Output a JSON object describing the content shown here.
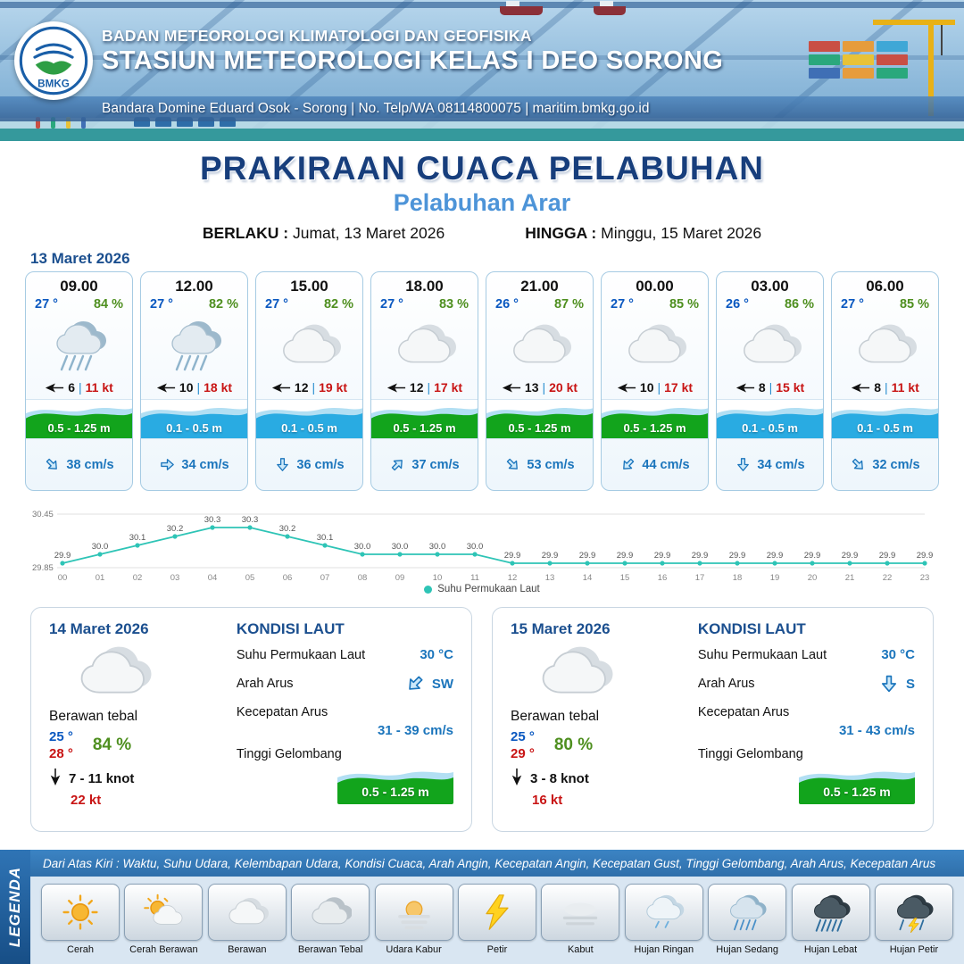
{
  "colors": {
    "title_blue": "#173e7c",
    "subtitle_blue": "#4d94d8",
    "date_blue": "#1b4f8f",
    "temp_blue": "#0a58c0",
    "humidity_green": "#4e8f1f",
    "gust_red": "#c81414",
    "wave_green": "#12a41c",
    "wave_blue": "#29abe2",
    "current_blue": "#1b75bc",
    "chart_line": "#2ec4b6"
  },
  "header": {
    "logo_text": "BMKG",
    "line1": "BADAN METEOROLOGI KLIMATOLOGI DAN GEOFISIKA",
    "line2": "STASIUN METEOROLOGI KELAS I DEO SORONG",
    "line3": "Bandara Domine Eduard Osok - Sorong | No. Telp/WA 08114800075 | maritim.bmkg.go.id"
  },
  "title": {
    "main": "PRAKIRAAN CUACA PELABUHAN",
    "subtitle": "Pelabuhan Arar",
    "berlaku_label": "BERLAKU :",
    "berlaku_value": "Jumat, 13 Maret 2026",
    "hingga_label": "HINGGA :",
    "hingga_value": "Minggu, 15 Maret 2026"
  },
  "forecast": {
    "date": "13 Maret 2026",
    "cards": [
      {
        "time": "09.00",
        "temp": "27 °",
        "humidity": "84 %",
        "icon": "rain",
        "wind": "6",
        "gust": "11 kt",
        "wave": "0.5 - 1.25 m",
        "wave_level": "green",
        "current": "38 cm/s",
        "current_dir": "SE"
      },
      {
        "time": "12.00",
        "temp": "27 °",
        "humidity": "82 %",
        "icon": "rain",
        "wind": "10",
        "gust": "18 kt",
        "wave": "0.1 - 0.5 m",
        "wave_level": "blue",
        "current": "34 cm/s",
        "current_dir": "E"
      },
      {
        "time": "15.00",
        "temp": "27 °",
        "humidity": "82 %",
        "icon": "cloud",
        "wind": "12",
        "gust": "19 kt",
        "wave": "0.1 - 0.5 m",
        "wave_level": "blue",
        "current": "36 cm/s",
        "current_dir": "S"
      },
      {
        "time": "18.00",
        "temp": "27 °",
        "humidity": "83 %",
        "icon": "cloud",
        "wind": "12",
        "gust": "17 kt",
        "wave": "0.5 - 1.25 m",
        "wave_level": "green",
        "current": "37 cm/s",
        "current_dir": "NE"
      },
      {
        "time": "21.00",
        "temp": "26 °",
        "humidity": "87 %",
        "icon": "cloud",
        "wind": "13",
        "gust": "20 kt",
        "wave": "0.5 - 1.25 m",
        "wave_level": "green",
        "current": "53 cm/s",
        "current_dir": "SE"
      },
      {
        "time": "00.00",
        "temp": "27 °",
        "humidity": "85 %",
        "icon": "cloud",
        "wind": "10",
        "gust": "17 kt",
        "wave": "0.5 - 1.25 m",
        "wave_level": "green",
        "current": "44 cm/s",
        "current_dir": "SW"
      },
      {
        "time": "03.00",
        "temp": "26 °",
        "humidity": "86 %",
        "icon": "cloud",
        "wind": "8",
        "gust": "15 kt",
        "wave": "0.1 - 0.5 m",
        "wave_level": "blue",
        "current": "34 cm/s",
        "current_dir": "S"
      },
      {
        "time": "06.00",
        "temp": "27 °",
        "humidity": "85 %",
        "icon": "cloud",
        "wind": "8",
        "gust": "11 kt",
        "wave": "0.1 - 0.5 m",
        "wave_level": "blue",
        "current": "32 cm/s",
        "current_dir": "SE"
      }
    ]
  },
  "chart_data": {
    "type": "line",
    "series_label": "Suhu Permukaan Laut",
    "x": [
      "00",
      "01",
      "02",
      "03",
      "04",
      "05",
      "06",
      "07",
      "08",
      "09",
      "10",
      "11",
      "12",
      "13",
      "14",
      "15",
      "16",
      "17",
      "18",
      "19",
      "20",
      "21",
      "22",
      "23"
    ],
    "values": [
      29.9,
      30.0,
      30.1,
      30.2,
      30.3,
      30.3,
      30.2,
      30.1,
      30.0,
      30.0,
      30.0,
      30.0,
      29.9,
      29.9,
      29.9,
      29.9,
      29.9,
      29.9,
      29.9,
      29.9,
      29.9,
      29.9,
      29.9,
      29.9
    ],
    "ylim": [
      29.85,
      30.45
    ],
    "y_ticks": [
      "30.45",
      "29.85"
    ],
    "xlabel": "",
    "ylabel": ""
  },
  "days": [
    {
      "date": "14 Maret 2026",
      "condition": "Berawan tebal",
      "icon": "cloud",
      "temp_min": "25 °",
      "temp_max": "28 °",
      "humidity": "84 %",
      "wind_range": "7 - 11 knot",
      "gust": "22 kt",
      "sea": {
        "title": "KONDISI LAUT",
        "sst_label": "Suhu Permukaan Laut",
        "sst": "30 °C",
        "current_dir_label": "Arah Arus",
        "current_dir": "SW",
        "current_speed_label": "Kecepatan Arus",
        "current_speed": "31 - 39 cm/s",
        "wave_label": "Tinggi Gelombang",
        "wave": "0.5 - 1.25 m"
      }
    },
    {
      "date": "15 Maret 2026",
      "condition": "Berawan tebal",
      "icon": "cloud",
      "temp_min": "25 °",
      "temp_max": "29 °",
      "humidity": "80 %",
      "wind_range": "3 - 8 knot",
      "gust": "16 kt",
      "sea": {
        "title": "KONDISI LAUT",
        "sst_label": "Suhu Permukaan Laut",
        "sst": "30 °C",
        "current_dir_label": "Arah Arus",
        "current_dir": "S",
        "current_speed_label": "Kecepatan Arus",
        "current_speed": "31 - 43 cm/s",
        "wave_label": "Tinggi Gelombang",
        "wave": "0.5 - 1.25 m"
      }
    }
  ],
  "legend": {
    "vertical_label": "LEGENDA",
    "description": "Dari Atas Kiri : Waktu, Suhu Udara, Kelembapan Udara, Kondisi Cuaca, Arah Angin, Kecepatan Angin, Kecepatan Gust, Tinggi Gelombang, Arah Arus, Kecepatan Arus",
    "items": [
      {
        "label": "Cerah",
        "icon": "sun"
      },
      {
        "label": "Cerah Berawan",
        "icon": "sun-cloud"
      },
      {
        "label": "Berawan",
        "icon": "cloud"
      },
      {
        "label": "Berawan Tebal",
        "icon": "cloud-thick"
      },
      {
        "label": "Udara Kabur",
        "icon": "haze"
      },
      {
        "label": "Petir",
        "icon": "lightning"
      },
      {
        "label": "Kabut",
        "icon": "fog"
      },
      {
        "label": "Hujan Ringan",
        "icon": "rain-light"
      },
      {
        "label": "Hujan Sedang",
        "icon": "rain-medium"
      },
      {
        "label": "Hujan Lebat",
        "icon": "rain-heavy"
      },
      {
        "label": "Hujan Petir",
        "icon": "storm"
      }
    ]
  }
}
